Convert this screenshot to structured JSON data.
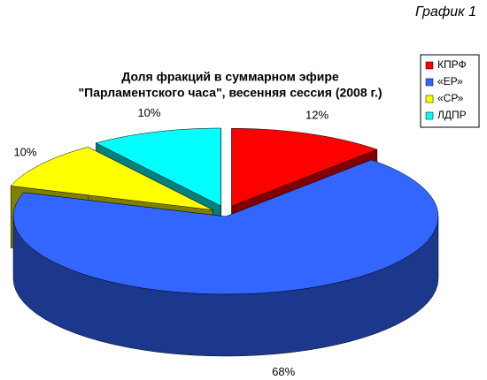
{
  "chart_data": {
    "type": "pie3d",
    "note": "График 1",
    "title": [
      "Доля фракций в суммарном эфире",
      "\"Парламентского часа\", весенняя сессия (2008 г.)"
    ],
    "categories": [
      "КПРФ",
      "«ЕР»",
      "«СР»",
      "ЛДПР"
    ],
    "values": [
      12,
      68,
      10,
      10
    ],
    "value_labels": [
      "12%",
      "68%",
      "10%",
      "10%"
    ],
    "colors": [
      "#ff0000",
      "#3366ff",
      "#ffff00",
      "#00ffff"
    ],
    "legend": "right"
  }
}
